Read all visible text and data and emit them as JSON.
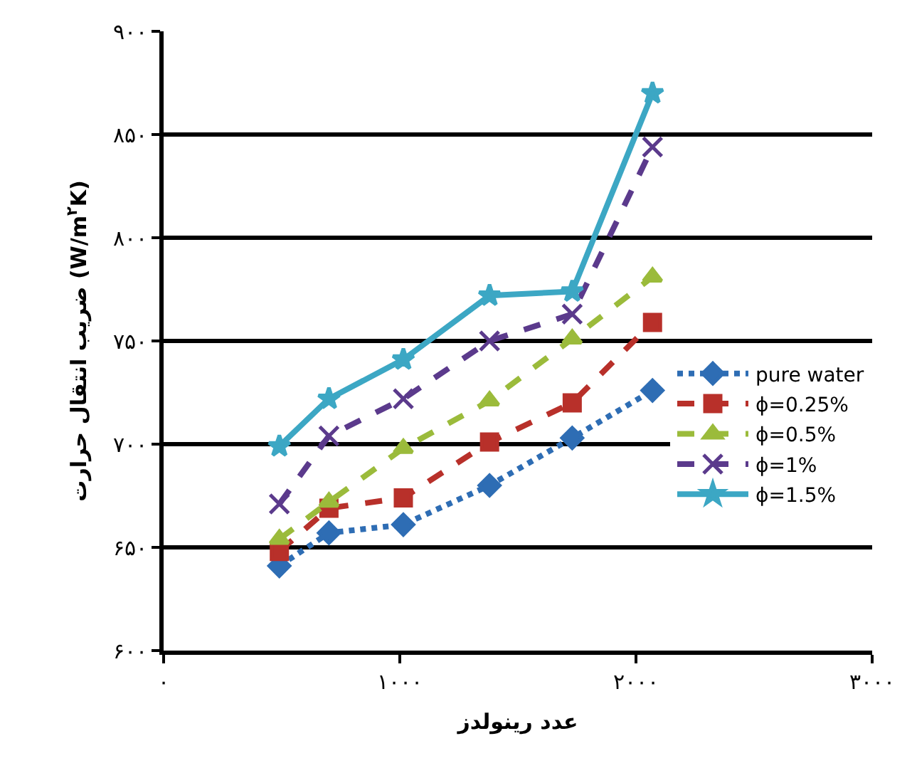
{
  "chart_data": {
    "type": "line",
    "xlabel": "عدد رینولدز",
    "ylabel": "ضریب انتقال حرارت (W/m$^{۲}$K)",
    "x": [
      490,
      700,
      1015,
      1380,
      1730,
      2070
    ],
    "series": [
      {
        "name": "pure water",
        "color": "#2e6db4",
        "values": [
          641,
          657,
          661,
          680,
          703,
          726
        ],
        "marker": "diamond",
        "line_style": "dotted"
      },
      {
        "name": "ϕ=0.25%",
        "color": "#b8302a",
        "values": [
          648,
          669,
          674,
          701,
          720,
          759
        ],
        "marker": "square",
        "line_style": "dashed"
      },
      {
        "name": "ϕ=0.5%",
        "color": "#9bbb3b",
        "values": [
          654,
          672,
          698,
          721,
          751,
          781
        ],
        "marker": "triangle",
        "line_style": "dashed"
      },
      {
        "name": "ϕ=1%",
        "color": "#5b3a8c",
        "values": [
          671,
          704,
          722,
          750,
          763,
          844
        ],
        "marker": "cross",
        "line_style": "dashed"
      },
      {
        "name": "ϕ=1.5%",
        "color": "#3ca7c4",
        "values": [
          699,
          722,
          741,
          772,
          774,
          870
        ],
        "marker": "star",
        "line_style": "solid"
      }
    ],
    "xlim": [
      0,
      3000
    ],
    "xticks": [
      {
        "value": 0,
        "label": "۰"
      },
      {
        "value": 1000,
        "label": "۱۰۰۰"
      },
      {
        "value": 2000,
        "label": "۲۰۰۰"
      },
      {
        "value": 3000,
        "label": "۳۰۰۰"
      }
    ],
    "ylim": [
      600,
      900
    ],
    "yticks": [
      {
        "value": 600,
        "label": "۶۰۰"
      },
      {
        "value": 650,
        "label": "۶۵۰"
      },
      {
        "value": 700,
        "label": "۷۰۰"
      },
      {
        "value": 750,
        "label": "۷۵۰"
      },
      {
        "value": 800,
        "label": "۸۰۰"
      },
      {
        "value": 850,
        "label": "۸۵۰"
      },
      {
        "value": 900,
        "label": "۹۰۰"
      }
    ],
    "grid": "y",
    "legend": "right"
  }
}
